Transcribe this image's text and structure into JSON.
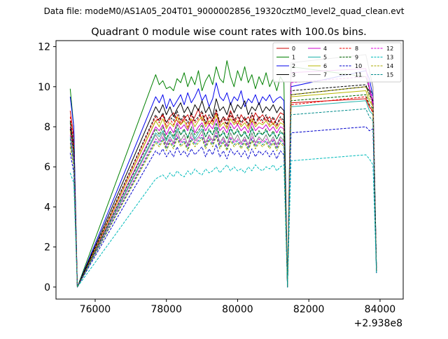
{
  "suptitle": "Data file: modeM0/AS1A05_204T01_9000002856_19320cztM0_level2_quad_clean.evt",
  "chart_data": {
    "type": "line",
    "title": "Quadrant 0 module wise count rates with 100.0s bins.",
    "xlabel": "",
    "ylabel": "",
    "x_offset_label": "+2.938e8",
    "xlim": [
      74900,
      84650
    ],
    "ylim": [
      -0.6,
      12.3
    ],
    "x_ticks": [
      76000,
      78000,
      80000,
      82000,
      84000
    ],
    "x_tick_labels": [
      "76000",
      "78000",
      "80000",
      "82000",
      "84000"
    ],
    "y_ticks": [
      0,
      2,
      4,
      6,
      8,
      10,
      12
    ],
    "y_tick_labels": [
      "0",
      "2",
      "4",
      "6",
      "8",
      "10",
      "12"
    ],
    "grid": false,
    "legend_position": "top-right",
    "segments": [
      {
        "start": 75300,
        "end": 75500,
        "step": 100
      },
      {
        "start": 75500,
        "end": 77700,
        "step": 2200
      },
      {
        "start": 77700,
        "end": 81500,
        "step": 100
      },
      {
        "start": 81500,
        "end": 83600,
        "step": 2100
      },
      {
        "start": 83600,
        "end": 84200,
        "step": 100
      }
    ],
    "series": [
      {
        "name": "0",
        "color": "#cc0000",
        "dash": false,
        "s1": [
          8.8,
          7.5,
          0.0
        ],
        "s2": [
          0.0,
          8.3,
          8.4,
          8.6,
          8.2,
          8.5,
          8.7,
          8.3,
          8.1,
          8.4,
          8.6,
          8.2,
          8.5,
          8.9,
          8.3,
          8.6,
          8.1,
          8.4,
          8.7,
          8.2,
          8.5,
          8.3,
          8.8,
          8.4,
          8.1,
          8.6,
          8.3,
          8.5,
          8.2,
          8.7,
          8.4,
          8.6,
          8.3,
          8.5,
          8.1,
          8.4,
          8.7,
          8.6,
          0.0
        ],
        "s3": [
          0.0,
          9.2,
          9.4,
          9.0,
          8.8,
          0.8
        ]
      },
      {
        "name": "1",
        "color": "#008000",
        "dash": false,
        "s1": [
          9.9,
          8.0,
          0.0
        ],
        "s2": [
          0.0,
          10.6,
          10.1,
          10.3,
          9.9,
          10.0,
          9.8,
          10.4,
          10.2,
          10.7,
          10.0,
          10.5,
          10.1,
          10.8,
          9.8,
          10.3,
          10.6,
          10.1,
          11.0,
          10.4,
          10.2,
          11.3,
          10.5,
          10.0,
          10.8,
          10.3,
          11.0,
          10.2,
          10.6,
          9.9,
          10.5,
          10.1,
          10.7,
          10.0,
          10.4,
          9.8,
          10.5,
          10.2,
          0.0
        ],
        "s3": [
          0.0,
          11.0,
          10.5,
          9.9,
          9.6,
          0.9
        ]
      },
      {
        "name": "2",
        "color": "#0000ee",
        "dash": false,
        "s1": [
          9.5,
          8.0,
          0.0
        ],
        "s2": [
          0.0,
          9.5,
          9.2,
          9.6,
          8.9,
          9.4,
          9.0,
          9.3,
          9.6,
          9.1,
          9.7,
          9.2,
          9.5,
          9.9,
          9.3,
          9.6,
          9.0,
          9.4,
          10.2,
          9.5,
          9.3,
          9.7,
          9.1,
          9.5,
          9.3,
          9.8,
          9.0,
          9.4,
          9.2,
          9.6,
          9.1,
          9.5,
          9.3,
          9.6,
          9.2,
          9.4,
          9.5,
          9.3,
          0.0
        ],
        "s3": [
          0.0,
          10.0,
          10.8,
          10.4,
          9.5,
          0.9
        ]
      },
      {
        "name": "3",
        "color": "#000000",
        "dash": false,
        "s1": [
          8.3,
          7.0,
          0.0
        ],
        "s2": [
          0.0,
          9.0,
          8.7,
          9.1,
          8.6,
          9.0,
          8.5,
          8.9,
          9.2,
          8.7,
          9.0,
          8.6,
          9.1,
          8.8,
          9.3,
          8.7,
          9.0,
          8.5,
          9.4,
          8.8,
          9.0,
          8.6,
          9.2,
          8.7,
          9.1,
          8.9,
          9.3,
          8.6,
          9.0,
          8.8,
          9.2,
          8.7,
          9.0,
          8.8,
          9.1,
          8.7,
          9.0,
          8.8,
          0.0
        ],
        "s3": [
          0.0,
          9.6,
          10.0,
          9.8,
          9.2,
          0.8
        ]
      },
      {
        "name": "4",
        "color": "#cc00cc",
        "dash": false,
        "s1": [
          8.0,
          6.9,
          0.0
        ],
        "s2": [
          0.0,
          8.0,
          7.8,
          8.1,
          7.6,
          8.0,
          7.7,
          8.2,
          7.9,
          8.1,
          7.8,
          8.3,
          7.7,
          8.0,
          8.2,
          7.8,
          8.1,
          7.9,
          8.4,
          7.8,
          8.0,
          7.7,
          8.2,
          7.9,
          8.1,
          7.8,
          8.0,
          7.7,
          8.2,
          7.8,
          8.0,
          7.9,
          8.1,
          7.8,
          8.0,
          7.7,
          8.0,
          7.9,
          0.0
        ],
        "s3": [
          0.0,
          10.7,
          10.9,
          10.0,
          9.0,
          0.8
        ]
      },
      {
        "name": "5",
        "color": "#20b2aa",
        "dash": false,
        "s1": [
          7.5,
          6.4,
          0.0
        ],
        "s2": [
          0.0,
          7.7,
          7.5,
          7.8,
          7.3,
          7.7,
          7.4,
          7.9,
          7.6,
          7.8,
          7.5,
          7.9,
          7.4,
          7.7,
          7.9,
          7.5,
          7.8,
          7.6,
          8.0,
          7.5,
          7.7,
          7.4,
          7.9,
          7.6,
          7.8,
          7.5,
          7.7,
          7.4,
          7.9,
          7.5,
          7.7,
          7.6,
          7.8,
          7.5,
          7.7,
          7.4,
          7.7,
          7.6,
          0.0
        ],
        "s3": [
          0.0,
          9.0,
          9.3,
          8.8,
          8.6,
          0.8
        ]
      },
      {
        "name": "6",
        "color": "#b8b800",
        "dash": false,
        "s1": [
          7.8,
          6.7,
          0.0
        ],
        "s2": [
          0.0,
          8.3,
          8.0,
          8.4,
          7.9,
          8.2,
          8.0,
          8.5,
          8.1,
          8.3,
          7.9,
          8.4,
          8.0,
          8.3,
          8.5,
          8.0,
          8.3,
          8.1,
          8.6,
          8.0,
          8.2,
          7.9,
          8.4,
          8.1,
          8.3,
          8.0,
          8.2,
          7.9,
          8.4,
          8.0,
          8.2,
          8.1,
          8.3,
          8.0,
          8.2,
          7.9,
          8.2,
          8.1,
          0.0
        ],
        "s3": [
          0.0,
          9.5,
          9.8,
          9.3,
          9.0,
          0.8
        ]
      },
      {
        "name": "7",
        "color": "#808080",
        "dash": false,
        "s1": [
          7.2,
          6.2,
          0.0
        ],
        "s2": [
          0.0,
          7.6,
          7.3,
          7.7,
          7.1,
          7.5,
          7.2,
          7.8,
          7.3,
          7.6,
          7.1,
          7.7,
          7.3,
          7.5,
          7.8,
          7.2,
          7.6,
          7.3,
          7.9,
          7.2,
          7.5,
          7.1,
          7.7,
          7.3,
          7.6,
          7.2,
          7.5,
          7.1,
          7.7,
          7.2,
          7.5,
          7.3,
          7.6,
          7.2,
          7.5,
          7.1,
          7.5,
          7.3,
          0.0
        ],
        "s3": [
          0.0,
          11.2,
          11.6,
          10.8,
          10.0,
          0.9
        ]
      },
      {
        "name": "8",
        "color": "#ee0000",
        "dash": true,
        "s1": [
          8.5,
          7.2,
          0.0
        ],
        "s2": [
          0.0,
          8.5,
          8.2,
          8.6,
          8.0,
          8.4,
          8.1,
          8.6,
          8.2,
          8.5,
          8.0,
          8.6,
          8.2,
          8.4,
          8.7,
          8.1,
          8.5,
          8.2,
          8.8,
          8.1,
          8.4,
          8.0,
          8.6,
          8.2,
          8.5,
          8.1,
          8.4,
          8.0,
          8.6,
          8.1,
          8.4,
          8.2,
          8.5,
          8.1,
          8.4,
          8.0,
          8.4,
          8.2,
          0.0
        ],
        "s3": [
          0.0,
          9.1,
          9.5,
          9.0,
          8.7,
          0.8
        ]
      },
      {
        "name": "9",
        "color": "#006400",
        "dash": true,
        "s1": [
          8.2,
          7.0,
          0.0
        ],
        "s2": [
          0.0,
          7.9,
          7.6,
          8.0,
          7.4,
          7.8,
          7.5,
          8.1,
          7.6,
          7.9,
          7.4,
          8.0,
          7.6,
          7.8,
          8.1,
          7.5,
          7.9,
          7.6,
          8.2,
          7.5,
          7.8,
          7.4,
          8.0,
          7.6,
          7.9,
          7.5,
          7.8,
          7.4,
          8.0,
          7.5,
          7.8,
          7.6,
          7.9,
          7.5,
          7.8,
          7.4,
          7.8,
          7.6,
          0.0
        ],
        "s3": [
          0.0,
          9.3,
          9.6,
          9.1,
          8.9,
          0.8
        ]
      },
      {
        "name": "10",
        "color": "#0000cc",
        "dash": true,
        "s1": [
          6.7,
          5.7,
          0.0
        ],
        "s2": [
          0.0,
          6.8,
          6.6,
          6.9,
          6.5,
          6.8,
          6.5,
          7.0,
          6.6,
          6.8,
          6.5,
          6.9,
          6.6,
          6.8,
          7.0,
          6.5,
          6.9,
          6.6,
          7.1,
          6.5,
          6.8,
          6.4,
          6.9,
          6.6,
          6.8,
          6.5,
          6.8,
          6.4,
          6.9,
          6.5,
          6.8,
          6.6,
          6.8,
          6.5,
          6.8,
          6.4,
          6.8,
          6.6,
          0.0
        ],
        "s3": [
          0.0,
          7.7,
          8.0,
          7.8,
          7.9,
          0.7
        ]
      },
      {
        "name": "11",
        "color": "#000000",
        "dash": true,
        "s1": [
          7.9,
          6.8,
          0.0
        ],
        "s2": [
          0.0,
          8.6,
          8.3,
          8.7,
          8.2,
          8.5,
          8.3,
          8.8,
          8.3,
          8.6,
          8.2,
          8.7,
          8.3,
          8.5,
          8.8,
          8.2,
          8.6,
          8.3,
          8.9,
          8.2,
          8.5,
          8.1,
          8.7,
          8.3,
          8.6,
          8.2,
          8.5,
          8.1,
          8.7,
          8.2,
          8.5,
          8.3,
          8.6,
          8.2,
          8.5,
          8.1,
          8.5,
          8.3,
          0.0
        ],
        "s3": [
          0.0,
          9.8,
          10.1,
          9.6,
          9.3,
          0.8
        ]
      },
      {
        "name": "12",
        "color": "#dd00dd",
        "dash": true,
        "s1": [
          7.6,
          6.5,
          0.0
        ],
        "s2": [
          0.0,
          7.4,
          7.2,
          7.5,
          7.0,
          7.4,
          7.1,
          7.6,
          7.2,
          7.4,
          7.0,
          7.5,
          7.2,
          7.4,
          7.6,
          7.1,
          7.5,
          7.2,
          7.7,
          7.1,
          7.4,
          7.0,
          7.5,
          7.2,
          7.4,
          7.1,
          7.4,
          7.0,
          7.5,
          7.1,
          7.4,
          7.2,
          7.4,
          7.1,
          7.4,
          7.0,
          7.4,
          7.2,
          0.0
        ],
        "s3": [
          0.0,
          10.2,
          10.5,
          9.9,
          9.4,
          0.8
        ]
      },
      {
        "name": "13",
        "color": "#00bbbb",
        "dash": true,
        "s1": [
          5.7,
          5.2,
          0.0
        ],
        "s2": [
          0.0,
          5.4,
          5.5,
          5.6,
          5.4,
          5.7,
          5.5,
          5.8,
          5.6,
          5.5,
          5.8,
          5.6,
          5.9,
          5.7,
          5.6,
          5.9,
          5.7,
          5.8,
          6.0,
          5.7,
          5.9,
          6.1,
          5.8,
          6.0,
          5.8,
          5.9,
          5.7,
          6.0,
          5.8,
          6.1,
          5.9,
          5.8,
          6.0,
          5.9,
          6.1,
          5.8,
          6.0,
          6.1,
          0.0
        ],
        "s3": [
          0.0,
          6.3,
          6.6,
          6.4,
          6.1,
          0.7
        ]
      },
      {
        "name": "14",
        "color": "#aaaa00",
        "dash": true,
        "s1": [
          7.0,
          6.0,
          0.0
        ],
        "s2": [
          0.0,
          7.2,
          7.0,
          7.3,
          6.8,
          7.2,
          6.9,
          7.4,
          7.0,
          7.2,
          6.8,
          7.3,
          7.0,
          7.2,
          7.4,
          6.9,
          7.3,
          7.0,
          7.5,
          6.9,
          7.2,
          6.8,
          7.3,
          7.0,
          7.2,
          6.9,
          7.2,
          6.8,
          7.3,
          6.9,
          7.2,
          7.0,
          7.2,
          6.9,
          7.2,
          6.8,
          7.2,
          7.0,
          0.0
        ],
        "s3": [
          0.0,
          9.6,
          10.0,
          9.5,
          9.0,
          0.8
        ]
      },
      {
        "name": "15",
        "color": "#008b8b",
        "dash": true,
        "s1": [
          7.4,
          6.3,
          0.0
        ],
        "s2": [
          0.0,
          7.3,
          7.1,
          7.4,
          6.9,
          7.3,
          7.0,
          7.5,
          7.1,
          7.3,
          6.9,
          7.4,
          7.1,
          7.3,
          7.5,
          7.0,
          7.4,
          7.1,
          7.6,
          7.0,
          7.3,
          6.9,
          7.4,
          7.1,
          7.3,
          7.0,
          7.3,
          6.9,
          7.4,
          7.0,
          7.3,
          7.1,
          7.3,
          7.0,
          7.3,
          6.9,
          7.3,
          7.1,
          0.0
        ],
        "s3": [
          0.0,
          8.6,
          8.9,
          8.5,
          8.3,
          0.7
        ]
      }
    ]
  }
}
